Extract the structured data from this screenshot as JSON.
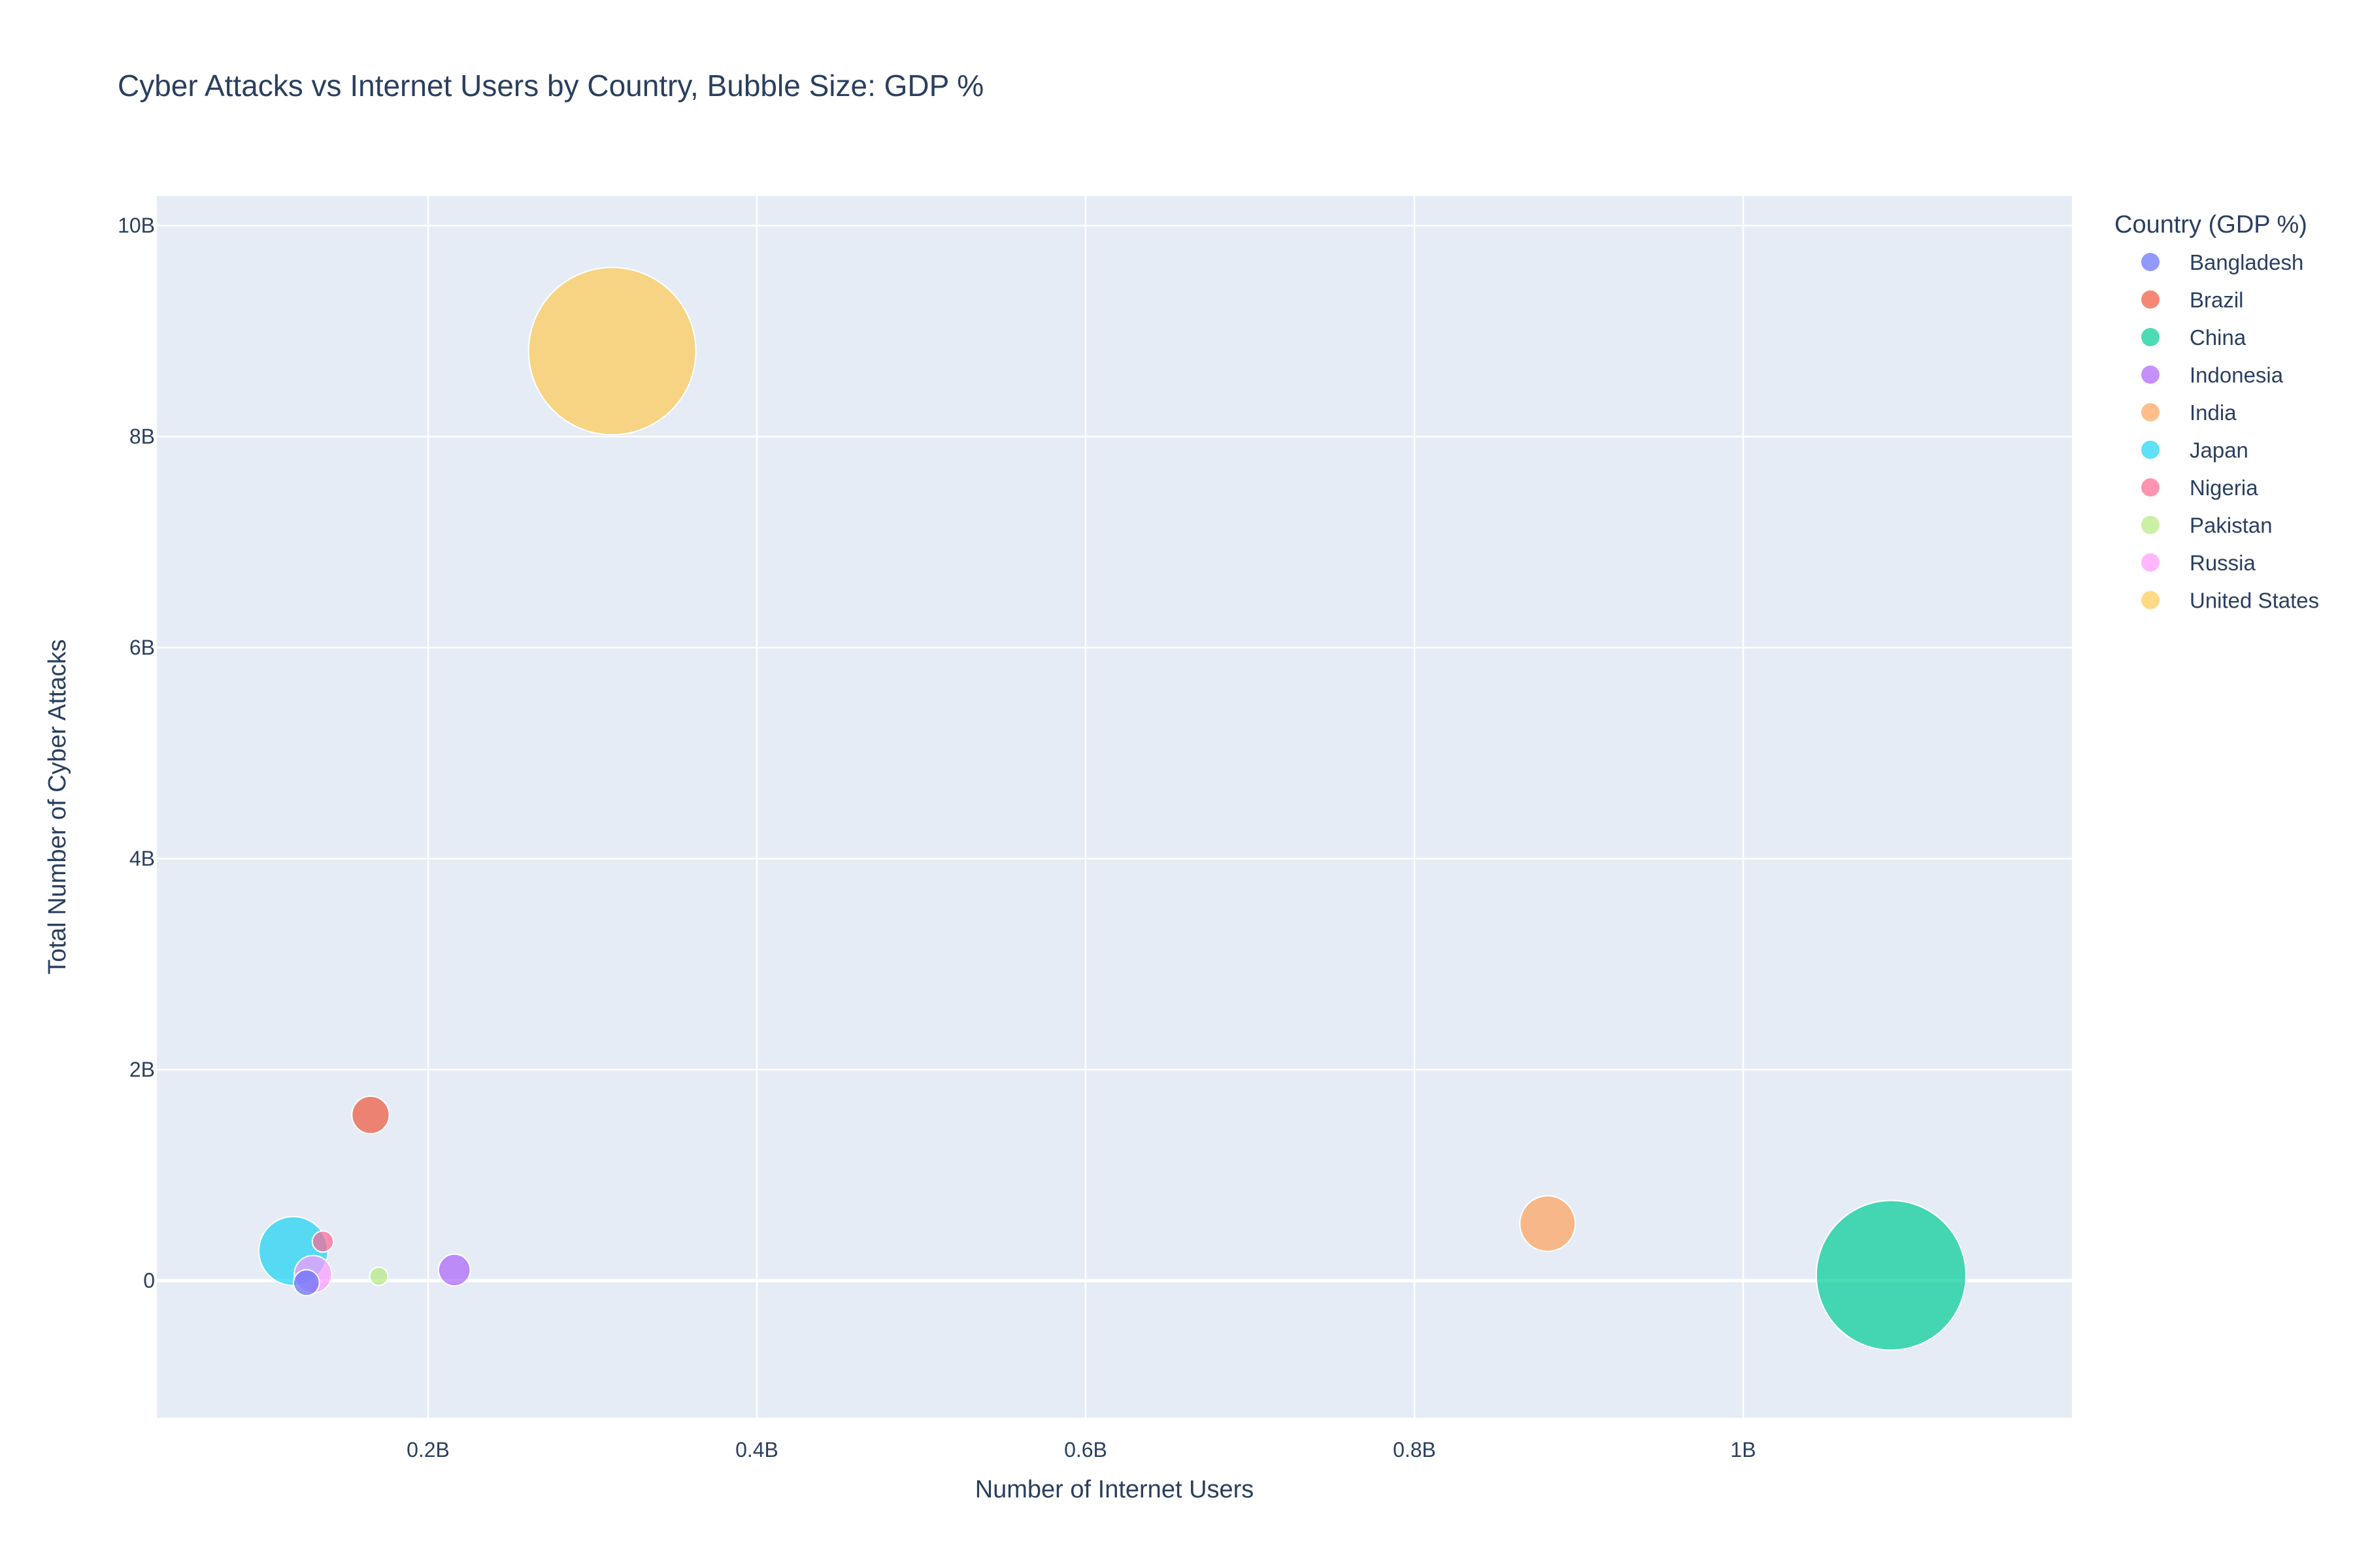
{
  "chart_data": {
    "type": "scatter",
    "title": "Cyber Attacks vs Internet Users by Country, Bubble Size: GDP %",
    "xlabel": "Number of Internet Users",
    "ylabel": "Total Number of Cyber Attacks",
    "xlim": [
      35000000,
      1200000000
    ],
    "ylim": [
      -1300000000,
      10280000000
    ],
    "x_ticks": [
      {
        "value": 200000000,
        "label": "0.2B"
      },
      {
        "value": 400000000,
        "label": "0.4B"
      },
      {
        "value": 600000000,
        "label": "0.6B"
      },
      {
        "value": 800000000,
        "label": "0.8B"
      },
      {
        "value": 1000000000,
        "label": "1B"
      }
    ],
    "y_ticks": [
      {
        "value": 0,
        "label": "0"
      },
      {
        "value": 2000000000,
        "label": "2B"
      },
      {
        "value": 4000000000,
        "label": "4B"
      },
      {
        "value": 6000000000,
        "label": "6B"
      },
      {
        "value": 8000000000,
        "label": "8B"
      },
      {
        "value": 10000000000,
        "label": "10B"
      }
    ],
    "grid": true,
    "legend_title": "Country (GDP %)",
    "legend_position": "right",
    "size_variable": "GDP %",
    "series": [
      {
        "name": "Bangladesh",
        "color": "#636efa",
        "points": [
          {
            "x": 126000000,
            "y": -20000000,
            "size": 1.2
          }
        ]
      },
      {
        "name": "Brazil",
        "color": "#ef553b",
        "points": [
          {
            "x": 165000000,
            "y": 1570000000,
            "size": 2.5
          }
        ]
      },
      {
        "name": "China",
        "color": "#00cc96",
        "points": [
          {
            "x": 1090000000,
            "y": 50000000,
            "size": 40
          }
        ]
      },
      {
        "name": "Indonesia",
        "color": "#ab63fa",
        "points": [
          {
            "x": 216000000,
            "y": 100000000,
            "size": 1.8
          }
        ]
      },
      {
        "name": "India",
        "color": "#ffa15a",
        "points": [
          {
            "x": 881000000,
            "y": 540000000,
            "size": 5.5
          }
        ]
      },
      {
        "name": "Japan",
        "color": "#19d3f3",
        "points": [
          {
            "x": 118000000,
            "y": 280000000,
            "size": 8.5
          }
        ]
      },
      {
        "name": "Nigeria",
        "color": "#ff6692",
        "points": [
          {
            "x": 136000000,
            "y": 370000000,
            "size": 0.8
          }
        ]
      },
      {
        "name": "Pakistan",
        "color": "#b6e880",
        "points": [
          {
            "x": 170000000,
            "y": 40000000,
            "size": 0.4
          }
        ]
      },
      {
        "name": "Russia",
        "color": "#ff97ff",
        "points": [
          {
            "x": 130000000,
            "y": 60000000,
            "size": 2.5
          }
        ]
      },
      {
        "name": "United States",
        "color": "#fecb52",
        "points": [
          {
            "x": 312000000,
            "y": 8810000000,
            "size": 50
          }
        ]
      }
    ]
  }
}
